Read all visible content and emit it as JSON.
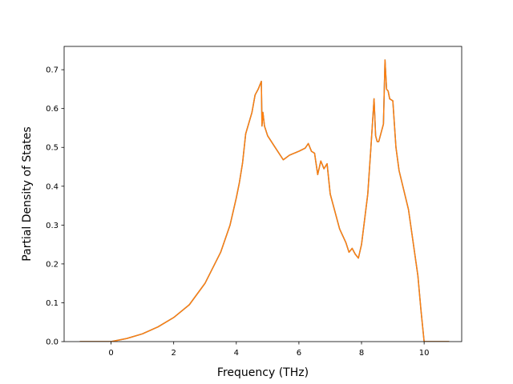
{
  "chart_data": {
    "type": "line",
    "title": "",
    "xlabel": "Frequency (THz)",
    "ylabel": "Partial Density of States",
    "xlim": [
      -1.5,
      11.2
    ],
    "ylim": [
      0.0,
      0.76
    ],
    "grid": false,
    "x_ticks": [
      0,
      2,
      4,
      6,
      8,
      10
    ],
    "y_ticks": [
      0.0,
      0.1,
      0.2,
      0.3,
      0.4,
      0.5,
      0.6,
      0.7
    ],
    "x_tick_labels": [
      "0",
      "2",
      "4",
      "6",
      "8",
      "10"
    ],
    "y_tick_labels": [
      "0.0",
      "0.1",
      "0.2",
      "0.3",
      "0.4",
      "0.5",
      "0.6",
      "0.7"
    ],
    "series": [
      {
        "color": "#1f77b4",
        "x": [
          -1.0,
          0.0,
          0.5,
          1.0,
          1.5,
          2.0,
          2.5,
          3.0,
          3.5,
          3.8,
          4.0,
          4.1,
          4.2,
          4.3,
          4.5,
          4.6,
          4.7,
          4.8,
          4.82,
          4.85,
          4.9,
          5.0,
          5.2,
          5.5,
          5.7,
          6.0,
          6.2,
          6.3,
          6.4,
          6.5,
          6.6,
          6.7,
          6.8,
          6.9,
          7.0,
          7.3,
          7.5,
          7.6,
          7.7,
          7.8,
          7.9,
          8.0,
          8.2,
          8.3,
          8.4,
          8.45,
          8.5,
          8.55,
          8.7,
          8.75,
          8.8,
          8.85,
          8.9,
          9.0,
          9.1,
          9.2,
          9.5,
          9.8,
          9.9,
          10.0,
          10.5,
          10.8
        ],
        "y": [
          0.0,
          0.0,
          0.008,
          0.02,
          0.038,
          0.062,
          0.095,
          0.15,
          0.23,
          0.3,
          0.37,
          0.41,
          0.46,
          0.535,
          0.59,
          0.635,
          0.65,
          0.67,
          0.555,
          0.59,
          0.555,
          0.53,
          0.505,
          0.468,
          0.48,
          0.49,
          0.498,
          0.51,
          0.49,
          0.485,
          0.43,
          0.465,
          0.445,
          0.458,
          0.38,
          0.29,
          0.255,
          0.23,
          0.24,
          0.225,
          0.215,
          0.25,
          0.38,
          0.5,
          0.625,
          0.53,
          0.515,
          0.515,
          0.56,
          0.725,
          0.65,
          0.645,
          0.625,
          0.62,
          0.5,
          0.44,
          0.34,
          0.17,
          0.08,
          0.0,
          0.0,
          0.0
        ]
      },
      {
        "color": "#ff7f0e",
        "x": [
          -1.0,
          0.0,
          0.5,
          1.0,
          1.5,
          2.0,
          2.5,
          3.0,
          3.5,
          3.8,
          4.0,
          4.1,
          4.2,
          4.3,
          4.5,
          4.6,
          4.7,
          4.8,
          4.82,
          4.85,
          4.9,
          5.0,
          5.2,
          5.5,
          5.7,
          6.0,
          6.2,
          6.3,
          6.4,
          6.5,
          6.6,
          6.7,
          6.8,
          6.9,
          7.0,
          7.3,
          7.5,
          7.6,
          7.7,
          7.8,
          7.9,
          8.0,
          8.2,
          8.3,
          8.4,
          8.45,
          8.5,
          8.55,
          8.7,
          8.75,
          8.8,
          8.85,
          8.9,
          9.0,
          9.1,
          9.2,
          9.5,
          9.8,
          9.9,
          10.0,
          10.5,
          10.8
        ],
        "y": [
          0.0,
          0.0,
          0.008,
          0.02,
          0.038,
          0.062,
          0.095,
          0.15,
          0.23,
          0.3,
          0.37,
          0.41,
          0.46,
          0.535,
          0.59,
          0.635,
          0.65,
          0.67,
          0.555,
          0.59,
          0.555,
          0.53,
          0.505,
          0.468,
          0.48,
          0.49,
          0.498,
          0.51,
          0.49,
          0.485,
          0.43,
          0.465,
          0.445,
          0.458,
          0.38,
          0.29,
          0.255,
          0.23,
          0.24,
          0.225,
          0.215,
          0.25,
          0.38,
          0.5,
          0.625,
          0.53,
          0.515,
          0.515,
          0.56,
          0.725,
          0.65,
          0.645,
          0.625,
          0.62,
          0.5,
          0.44,
          0.34,
          0.17,
          0.08,
          0.0,
          0.0,
          0.0
        ]
      }
    ]
  }
}
